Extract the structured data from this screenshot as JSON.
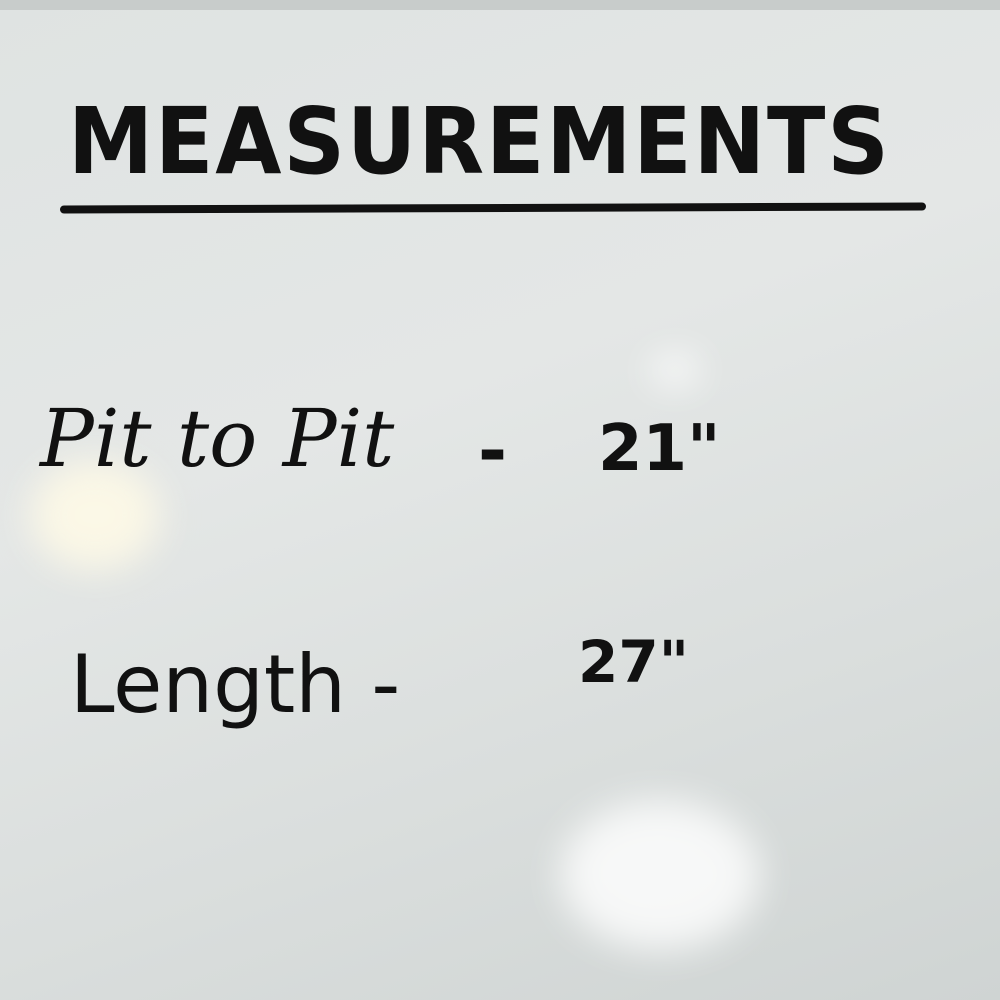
{
  "whiteboard": {
    "title": "MEASUREMENTS",
    "rows": [
      {
        "label": "Pit to Pit",
        "dash": "-",
        "value": "21\""
      },
      {
        "label": "Length -",
        "value": "27\""
      }
    ]
  }
}
